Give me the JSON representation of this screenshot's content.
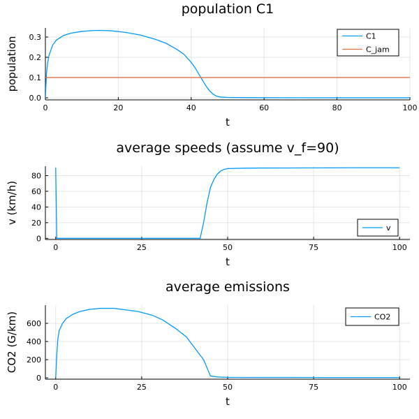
{
  "chart_data": [
    {
      "type": "line",
      "title": "population C1",
      "xlabel": "t",
      "ylabel": "population",
      "xlim": [
        0,
        100
      ],
      "ylim": [
        -0.01,
        0.345
      ],
      "xticks": [
        0,
        20,
        40,
        60,
        80,
        100
      ],
      "yticks": [
        0.0,
        0.1,
        0.2,
        0.3
      ],
      "ytick_labels": [
        "0.0",
        "0.1",
        "0.2",
        "0.3"
      ],
      "grid": true,
      "legend_position": "top-right",
      "series": [
        {
          "name": "C1",
          "color": "#009AFA",
          "x": [
            0,
            0.3,
            0.6,
            1,
            2,
            3,
            5,
            7,
            10,
            13,
            15,
            18,
            22,
            26,
            30,
            33,
            36,
            38,
            40,
            41,
            42,
            43,
            44,
            45,
            46,
            47,
            48,
            50,
            55,
            60,
            70,
            80,
            90,
            100
          ],
          "y": [
            0.0,
            0.12,
            0.17,
            0.21,
            0.26,
            0.285,
            0.308,
            0.319,
            0.328,
            0.332,
            0.333,
            0.331,
            0.323,
            0.31,
            0.29,
            0.27,
            0.24,
            0.215,
            0.175,
            0.15,
            0.12,
            0.09,
            0.06,
            0.035,
            0.018,
            0.008,
            0.004,
            0.002,
            0.001,
            0.0005,
            0.0003,
            0.0002,
            0.0001,
            0.0001
          ]
        },
        {
          "name": "C_jam",
          "color": "#E36F47",
          "x": [
            0,
            100
          ],
          "y": [
            0.1,
            0.1
          ]
        }
      ]
    },
    {
      "type": "line",
      "title": "average speeds (assume v_f=90)",
      "xlabel": "t",
      "ylabel": "v (km/h)",
      "xlim": [
        -3,
        103
      ],
      "ylim": [
        -1.5,
        92
      ],
      "xticks": [
        0,
        25,
        50,
        75,
        100
      ],
      "yticks": [
        0,
        20,
        40,
        60,
        80
      ],
      "grid": true,
      "legend_position": "bottom-right",
      "series": [
        {
          "name": "v",
          "color": "#009AFA",
          "x": [
            0,
            0.3,
            1,
            5,
            10,
            20,
            30,
            40,
            42,
            43,
            44,
            45,
            46,
            47,
            48,
            49,
            50,
            55,
            60,
            70,
            80,
            90,
            100
          ],
          "y": [
            90,
            0,
            0,
            0,
            0,
            0,
            0,
            0,
            0,
            20,
            45,
            65,
            75,
            82,
            86,
            88,
            89,
            89.5,
            89.7,
            89.8,
            89.9,
            90,
            90
          ]
        }
      ]
    },
    {
      "type": "line",
      "title": "average emissions",
      "xlabel": "t",
      "ylabel": "CO2 (G/km)",
      "xlim": [
        -3,
        103
      ],
      "ylim": [
        -15,
        800
      ],
      "xticks": [
        0,
        25,
        50,
        75,
        100
      ],
      "yticks": [
        0,
        200,
        400,
        600
      ],
      "grid": true,
      "legend_position": "top-right",
      "series": [
        {
          "name": "CO2",
          "color": "#009AFA",
          "x": [
            0,
            0.3,
            0.6,
            1,
            2,
            3,
            5,
            7,
            10,
            13,
            17,
            20,
            24,
            28,
            31,
            35,
            38,
            41,
            43,
            45,
            47,
            48,
            50,
            60,
            70,
            80,
            90,
            100
          ],
          "y": [
            0,
            250,
            420,
            520,
            600,
            650,
            700,
            730,
            755,
            765,
            765,
            750,
            730,
            690,
            640,
            540,
            450,
            300,
            200,
            20,
            10,
            8,
            5,
            4,
            4,
            3,
            3,
            3
          ]
        }
      ]
    }
  ]
}
